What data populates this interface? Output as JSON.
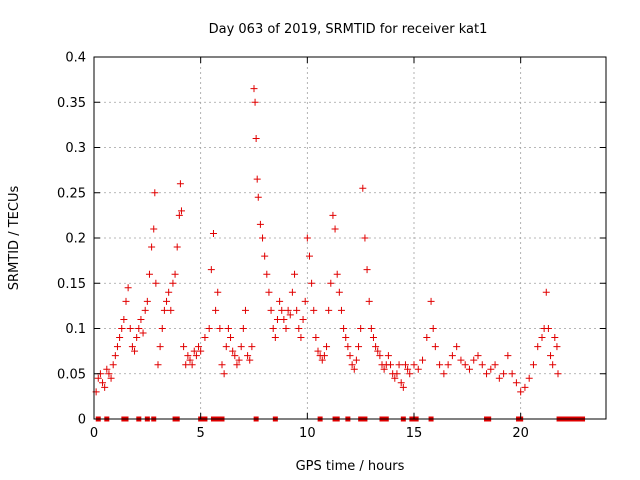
{
  "chart_data": {
    "type": "scatter",
    "title": "Day 063 of 2019, SRMTID for receiver kat1",
    "xlabel": "GPS time / hours",
    "ylabel": "SRMTID / TECUs",
    "xlim": [
      0,
      24
    ],
    "ylim": [
      0,
      0.4
    ],
    "xticks": [
      0,
      5,
      10,
      15,
      20
    ],
    "xtick_labels": [
      "0",
      "5",
      "10",
      "15",
      "20"
    ],
    "yticks": [
      0,
      0.05,
      0.1,
      0.15,
      0.2,
      0.25,
      0.3,
      0.35,
      0.4
    ],
    "ytick_labels": [
      "0",
      "0.05",
      "0.1",
      "0.15",
      "0.2",
      "0.25",
      "0.3",
      "0.35",
      "0.4"
    ],
    "grid": true,
    "marker": "plus",
    "color": "#e00000",
    "series": [
      {
        "name": "SRMTID",
        "points": [
          [
            0.1,
            0.03
          ],
          [
            0.2,
            0.045
          ],
          [
            0.3,
            0.05
          ],
          [
            0.4,
            0.04
          ],
          [
            0.5,
            0.035
          ],
          [
            0.6,
            0.055
          ],
          [
            0.7,
            0.05
          ],
          [
            0.8,
            0.045
          ],
          [
            0.9,
            0.06
          ],
          [
            1.0,
            0.07
          ],
          [
            1.1,
            0.08
          ],
          [
            1.2,
            0.09
          ],
          [
            1.3,
            0.1
          ],
          [
            1.4,
            0.11
          ],
          [
            1.5,
            0.13
          ],
          [
            1.6,
            0.145
          ],
          [
            1.7,
            0.1
          ],
          [
            1.8,
            0.08
          ],
          [
            1.9,
            0.075
          ],
          [
            2.0,
            0.09
          ],
          [
            2.1,
            0.1
          ],
          [
            2.2,
            0.11
          ],
          [
            2.3,
            0.095
          ],
          [
            2.4,
            0.12
          ],
          [
            2.5,
            0.13
          ],
          [
            2.6,
            0.16
          ],
          [
            2.7,
            0.19
          ],
          [
            2.8,
            0.21
          ],
          [
            2.85,
            0.25
          ],
          [
            2.9,
            0.15
          ],
          [
            3.0,
            0.06
          ],
          [
            3.1,
            0.08
          ],
          [
            3.2,
            0.1
          ],
          [
            3.3,
            0.12
          ],
          [
            3.4,
            0.13
          ],
          [
            3.5,
            0.14
          ],
          [
            3.6,
            0.12
          ],
          [
            3.7,
            0.15
          ],
          [
            3.8,
            0.16
          ],
          [
            3.9,
            0.19
          ],
          [
            4.0,
            0.225
          ],
          [
            4.05,
            0.26
          ],
          [
            4.1,
            0.23
          ],
          [
            4.2,
            0.08
          ],
          [
            4.3,
            0.06
          ],
          [
            4.4,
            0.07
          ],
          [
            4.5,
            0.065
          ],
          [
            4.6,
            0.06
          ],
          [
            4.7,
            0.075
          ],
          [
            4.8,
            0.07
          ],
          [
            4.9,
            0.08
          ],
          [
            5.0,
            0.075
          ],
          [
            5.2,
            0.09
          ],
          [
            5.4,
            0.1
          ],
          [
            5.5,
            0.165
          ],
          [
            5.6,
            0.205
          ],
          [
            5.7,
            0.12
          ],
          [
            5.8,
            0.14
          ],
          [
            5.9,
            0.1
          ],
          [
            6.0,
            0.06
          ],
          [
            6.1,
            0.05
          ],
          [
            6.2,
            0.08
          ],
          [
            6.3,
            0.1
          ],
          [
            6.4,
            0.09
          ],
          [
            6.5,
            0.075
          ],
          [
            6.6,
            0.07
          ],
          [
            6.7,
            0.06
          ],
          [
            6.8,
            0.065
          ],
          [
            6.9,
            0.08
          ],
          [
            7.0,
            0.1
          ],
          [
            7.1,
            0.12
          ],
          [
            7.2,
            0.07
          ],
          [
            7.3,
            0.065
          ],
          [
            7.4,
            0.08
          ],
          [
            7.5,
            0.365
          ],
          [
            7.55,
            0.35
          ],
          [
            7.6,
            0.31
          ],
          [
            7.65,
            0.265
          ],
          [
            7.7,
            0.245
          ],
          [
            7.8,
            0.215
          ],
          [
            7.9,
            0.2
          ],
          [
            8.0,
            0.18
          ],
          [
            8.1,
            0.16
          ],
          [
            8.2,
            0.14
          ],
          [
            8.3,
            0.12
          ],
          [
            8.4,
            0.1
          ],
          [
            8.5,
            0.09
          ],
          [
            8.6,
            0.11
          ],
          [
            8.7,
            0.13
          ],
          [
            8.8,
            0.12
          ],
          [
            8.9,
            0.11
          ],
          [
            9.0,
            0.1
          ],
          [
            9.1,
            0.12
          ],
          [
            9.2,
            0.115
          ],
          [
            9.3,
            0.14
          ],
          [
            9.4,
            0.16
          ],
          [
            9.5,
            0.12
          ],
          [
            9.6,
            0.1
          ],
          [
            9.7,
            0.09
          ],
          [
            9.8,
            0.11
          ],
          [
            9.9,
            0.13
          ],
          [
            10.0,
            0.2
          ],
          [
            10.1,
            0.18
          ],
          [
            10.2,
            0.15
          ],
          [
            10.3,
            0.12
          ],
          [
            10.4,
            0.09
          ],
          [
            10.5,
            0.075
          ],
          [
            10.6,
            0.07
          ],
          [
            10.7,
            0.065
          ],
          [
            10.8,
            0.07
          ],
          [
            10.9,
            0.08
          ],
          [
            11.0,
            0.12
          ],
          [
            11.1,
            0.15
          ],
          [
            11.2,
            0.225
          ],
          [
            11.3,
            0.21
          ],
          [
            11.4,
            0.16
          ],
          [
            11.5,
            0.14
          ],
          [
            11.6,
            0.12
          ],
          [
            11.7,
            0.1
          ],
          [
            11.8,
            0.09
          ],
          [
            11.9,
            0.08
          ],
          [
            12.0,
            0.07
          ],
          [
            12.1,
            0.06
          ],
          [
            12.2,
            0.055
          ],
          [
            12.3,
            0.065
          ],
          [
            12.4,
            0.08
          ],
          [
            12.5,
            0.1
          ],
          [
            12.6,
            0.255
          ],
          [
            12.7,
            0.2
          ],
          [
            12.8,
            0.165
          ],
          [
            12.9,
            0.13
          ],
          [
            13.0,
            0.1
          ],
          [
            13.1,
            0.09
          ],
          [
            13.2,
            0.08
          ],
          [
            13.3,
            0.075
          ],
          [
            13.4,
            0.07
          ],
          [
            13.5,
            0.06
          ],
          [
            13.6,
            0.055
          ],
          [
            13.7,
            0.06
          ],
          [
            13.8,
            0.07
          ],
          [
            13.9,
            0.06
          ],
          [
            14.0,
            0.05
          ],
          [
            14.1,
            0.045
          ],
          [
            14.2,
            0.05
          ],
          [
            14.3,
            0.06
          ],
          [
            14.4,
            0.04
          ],
          [
            14.5,
            0.035
          ],
          [
            14.6,
            0.06
          ],
          [
            14.7,
            0.055
          ],
          [
            14.8,
            0.05
          ],
          [
            15.0,
            0.06
          ],
          [
            15.2,
            0.055
          ],
          [
            15.4,
            0.065
          ],
          [
            15.6,
            0.09
          ],
          [
            15.8,
            0.13
          ],
          [
            15.9,
            0.1
          ],
          [
            16.0,
            0.08
          ],
          [
            16.2,
            0.06
          ],
          [
            16.4,
            0.05
          ],
          [
            16.6,
            0.06
          ],
          [
            16.8,
            0.07
          ],
          [
            17.0,
            0.08
          ],
          [
            17.2,
            0.065
          ],
          [
            17.4,
            0.06
          ],
          [
            17.6,
            0.055
          ],
          [
            17.8,
            0.065
          ],
          [
            18.0,
            0.07
          ],
          [
            18.2,
            0.06
          ],
          [
            18.4,
            0.05
          ],
          [
            18.6,
            0.055
          ],
          [
            18.8,
            0.06
          ],
          [
            19.0,
            0.045
          ],
          [
            19.2,
            0.05
          ],
          [
            19.4,
            0.07
          ],
          [
            19.6,
            0.05
          ],
          [
            19.8,
            0.04
          ],
          [
            20.0,
            0.03
          ],
          [
            20.2,
            0.035
          ],
          [
            20.4,
            0.045
          ],
          [
            20.6,
            0.06
          ],
          [
            20.8,
            0.08
          ],
          [
            21.0,
            0.09
          ],
          [
            21.1,
            0.1
          ],
          [
            21.2,
            0.14
          ],
          [
            21.3,
            0.1
          ],
          [
            21.4,
            0.07
          ],
          [
            21.5,
            0.06
          ],
          [
            21.6,
            0.09
          ],
          [
            21.7,
            0.08
          ],
          [
            21.75,
            0.05
          ]
        ]
      }
    ],
    "baseline_markers_x": [
      0.2,
      0.6,
      1.4,
      1.5,
      2.1,
      2.5,
      2.8,
      3.8,
      3.9,
      5.0,
      5.05,
      5.1,
      5.15,
      5.2,
      5.6,
      5.7,
      5.8,
      5.9,
      6.0,
      7.6,
      8.5,
      10.6,
      11.3,
      11.4,
      11.9,
      12.5,
      12.7,
      13.5,
      13.7,
      14.5,
      14.9,
      15.0,
      15.05,
      15.1,
      15.8,
      18.4,
      18.5,
      19.9,
      20.0,
      21.8,
      21.9,
      22.0,
      22.1,
      22.2,
      22.3,
      22.4,
      22.5,
      22.6,
      22.7,
      22.8,
      22.9
    ]
  }
}
